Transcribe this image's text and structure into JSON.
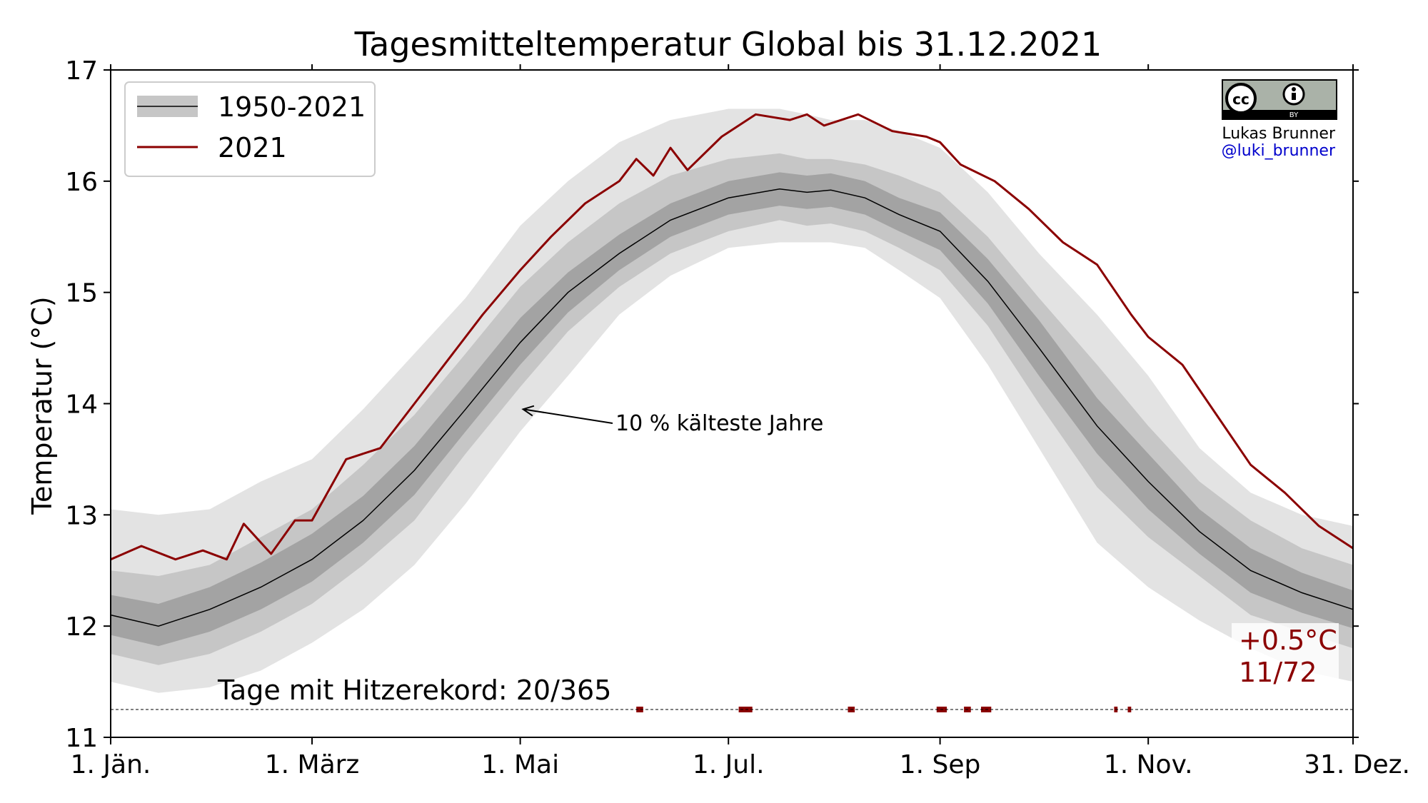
{
  "chart_data": {
    "type": "area",
    "title": "Tagesmitteltemperatur Global bis 31.12.2021",
    "ylabel": "Temperatur (°C)",
    "xlabel": "",
    "ylim": [
      11,
      17
    ],
    "xlim": [
      1,
      365
    ],
    "yticks": [
      11,
      12,
      13,
      14,
      15,
      16,
      17
    ],
    "xticks": [
      {
        "day": 1,
        "label": "1. Jän."
      },
      {
        "day": 60,
        "label": "1. März"
      },
      {
        "day": 121,
        "label": "1. Mai"
      },
      {
        "day": 182,
        "label": "1. Jul."
      },
      {
        "day": 244,
        "label": "1. Sep"
      },
      {
        "day": 305,
        "label": "1. Nov."
      },
      {
        "day": 365,
        "label": "31. Dez."
      }
    ],
    "grid": false,
    "legend_position": "top-left",
    "series": [
      {
        "name": "1950-2021",
        "kind": "median_with_percentile_bands",
        "color": "#000000",
        "x": [
          1,
          15,
          30,
          45,
          60,
          75,
          90,
          105,
          121,
          135,
          150,
          165,
          182,
          197,
          205,
          212,
          222,
          232,
          244,
          258,
          273,
          290,
          305,
          320,
          335,
          350,
          365
        ],
        "median": [
          12.1,
          12.0,
          12.15,
          12.35,
          12.6,
          12.95,
          13.4,
          13.95,
          14.55,
          15.0,
          15.35,
          15.65,
          15.85,
          15.93,
          15.9,
          15.92,
          15.85,
          15.7,
          15.55,
          15.1,
          14.5,
          13.8,
          13.3,
          12.85,
          12.5,
          12.3,
          12.15
        ],
        "bands": [
          {
            "lower": [
              11.5,
              11.4,
              11.45,
              11.6,
              11.85,
              12.15,
              12.55,
              13.1,
              13.75,
              14.25,
              14.8,
              15.15,
              15.4,
              15.45,
              15.45,
              15.45,
              15.4,
              15.2,
              14.95,
              14.35,
              13.6,
              12.75,
              12.35,
              12.05,
              11.8,
              11.6,
              11.5
            ],
            "upper": [
              13.05,
              13.0,
              13.05,
              13.3,
              13.5,
              13.95,
              14.45,
              14.95,
              15.6,
              16.0,
              16.35,
              16.55,
              16.65,
              16.65,
              16.6,
              16.55,
              16.55,
              16.45,
              16.3,
              15.9,
              15.35,
              14.8,
              14.25,
              13.6,
              13.2,
              13.0,
              12.9
            ]
          },
          {
            "lower": [
              11.75,
              11.65,
              11.75,
              11.95,
              12.2,
              12.55,
              12.95,
              13.55,
              14.15,
              14.65,
              15.05,
              15.35,
              15.55,
              15.65,
              15.6,
              15.62,
              15.55,
              15.4,
              15.2,
              14.7,
              14.0,
              13.25,
              12.8,
              12.45,
              12.1,
              11.95,
              11.8
            ],
            "upper": [
              12.5,
              12.45,
              12.55,
              12.8,
              13.05,
              13.45,
              13.9,
              14.45,
              15.05,
              15.45,
              15.8,
              16.05,
              16.2,
              16.25,
              16.2,
              16.2,
              16.15,
              16.05,
              15.9,
              15.5,
              14.95,
              14.35,
              13.8,
              13.3,
              12.95,
              12.7,
              12.55
            ]
          },
          {
            "lower": [
              11.92,
              11.82,
              11.95,
              12.15,
              12.4,
              12.75,
              13.18,
              13.75,
              14.35,
              14.82,
              15.2,
              15.5,
              15.7,
              15.78,
              15.75,
              15.77,
              15.7,
              15.55,
              15.38,
              14.9,
              14.25,
              13.55,
              13.05,
              12.65,
              12.3,
              12.12,
              11.98
            ],
            "upper": [
              12.28,
              12.2,
              12.35,
              12.57,
              12.83,
              13.17,
              13.62,
              14.17,
              14.77,
              15.18,
              15.52,
              15.8,
              16.0,
              16.08,
              16.05,
              16.07,
              16.0,
              15.85,
              15.72,
              15.3,
              14.75,
              14.05,
              13.55,
              13.05,
              12.7,
              12.48,
              12.32
            ]
          }
        ],
        "band_colors": [
          "#e3e3e3",
          "#c6c6c6",
          "#a3a3a3"
        ]
      },
      {
        "name": "2021",
        "kind": "line",
        "color": "#8b0000",
        "x": [
          1,
          10,
          20,
          28,
          35,
          40,
          48,
          55,
          60,
          70,
          80,
          90,
          100,
          110,
          121,
          130,
          140,
          150,
          155,
          160,
          165,
          170,
          180,
          190,
          200,
          205,
          210,
          220,
          230,
          240,
          244,
          250,
          260,
          270,
          280,
          290,
          300,
          305,
          315,
          325,
          335,
          345,
          355,
          365
        ],
        "y": [
          12.6,
          12.72,
          12.6,
          12.68,
          12.6,
          12.92,
          12.65,
          12.95,
          12.95,
          13.5,
          13.6,
          14.0,
          14.4,
          14.8,
          15.2,
          15.5,
          15.8,
          16.0,
          16.2,
          16.05,
          16.3,
          16.1,
          16.4,
          16.6,
          16.55,
          16.6,
          16.5,
          16.6,
          16.45,
          16.4,
          16.35,
          16.15,
          16.0,
          15.75,
          15.45,
          15.25,
          14.8,
          14.6,
          14.35,
          13.9,
          13.45,
          13.2,
          12.9,
          12.7
        ]
      }
    ],
    "annotations": [
      {
        "text": "10 % kälteste Jahre",
        "arrow_to_day": 121,
        "arrow_to_value": 13.95
      },
      {
        "text": "Tage mit Hitzerekord: 20/365"
      },
      {
        "text": "+0.5°C"
      },
      {
        "text": "11/72"
      }
    ],
    "record_level": 11.25,
    "record_segments": [
      [
        155,
        157
      ],
      [
        185,
        189
      ],
      [
        217,
        219
      ],
      [
        243,
        246
      ],
      [
        251,
        253
      ],
      [
        256,
        259
      ],
      [
        295,
        296
      ],
      [
        299,
        300
      ]
    ]
  },
  "credit": {
    "license": "CC BY",
    "author": "Lukas Brunner",
    "handle": "@luki_brunner"
  }
}
